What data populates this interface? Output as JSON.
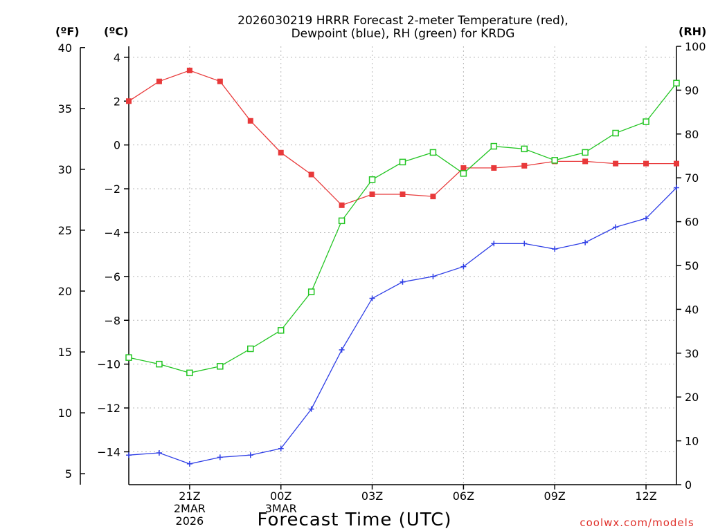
{
  "chart_data": {
    "type": "line",
    "title_lines": [
      "2026030219 HRRR Forecast 2-meter Temperature (red),",
      "Dewpoint (blue), RH (green) for KRDG"
    ],
    "xlabel": "Forecast Time (UTC)",
    "credit": "coolwx.com/models",
    "units": {
      "left_outer": "(ºF)",
      "left_inner": "(ºC)",
      "right": "(RH)"
    },
    "x": [
      19,
      20,
      21,
      22,
      23,
      24,
      25,
      26,
      27,
      28,
      29,
      30,
      31,
      32,
      33,
      34,
      35,
      36,
      37
    ],
    "xlim": [
      19,
      37
    ],
    "x_ticks": [
      {
        "x": 21,
        "lines": [
          "21Z",
          "2MAR",
          "2026"
        ]
      },
      {
        "x": 24,
        "lines": [
          "00Z",
          "3MAR"
        ]
      },
      {
        "x": 27,
        "lines": [
          "03Z"
        ]
      },
      {
        "x": 30,
        "lines": [
          "06Z"
        ]
      },
      {
        "x": 33,
        "lines": [
          "09Z"
        ]
      },
      {
        "x": 36,
        "lines": [
          "12Z"
        ]
      }
    ],
    "ylim_c": [
      -15.5,
      4.5
    ],
    "y_ticks_c": [
      4,
      2,
      0,
      -2,
      -4,
      -6,
      -8,
      -10,
      -12,
      -14
    ],
    "y_ticks_f": [
      40,
      35,
      30,
      25,
      20,
      15,
      10,
      5
    ],
    "ylim_rh": [
      0,
      100
    ],
    "y_ticks_rh": [
      100,
      90,
      80,
      70,
      60,
      50,
      40,
      30,
      20,
      10,
      0
    ],
    "series": [
      {
        "name": "2-meter Temperature",
        "axis": "c",
        "color": "#e8393a",
        "marker": "filled-square",
        "values": [
          2.0,
          2.9,
          3.4,
          2.9,
          1.1,
          -0.35,
          -1.35,
          -2.75,
          -2.25,
          -2.25,
          -2.35,
          -1.05,
          -1.05,
          -0.95,
          -0.75,
          -0.75,
          -0.85,
          -0.85,
          -0.85
        ]
      },
      {
        "name": "Dewpoint",
        "axis": "c",
        "color": "#2f3fe6",
        "marker": "plus",
        "values": [
          -14.15,
          -14.05,
          -14.55,
          -14.25,
          -14.15,
          -13.85,
          -12.05,
          -9.35,
          -7.0,
          -6.25,
          -6.0,
          -5.55,
          -4.5,
          -4.5,
          -4.75,
          -4.45,
          -3.75,
          -3.35,
          -1.95
        ]
      },
      {
        "name": "RH",
        "axis": "rh",
        "color": "#22c522",
        "marker": "open-square",
        "values": [
          29.0,
          27.5,
          25.5,
          27.0,
          31.0,
          35.2,
          44.0,
          60.2,
          69.6,
          73.6,
          75.8,
          71.0,
          77.2,
          76.6,
          74.0,
          75.8,
          80.2,
          82.8,
          91.6
        ]
      }
    ]
  }
}
